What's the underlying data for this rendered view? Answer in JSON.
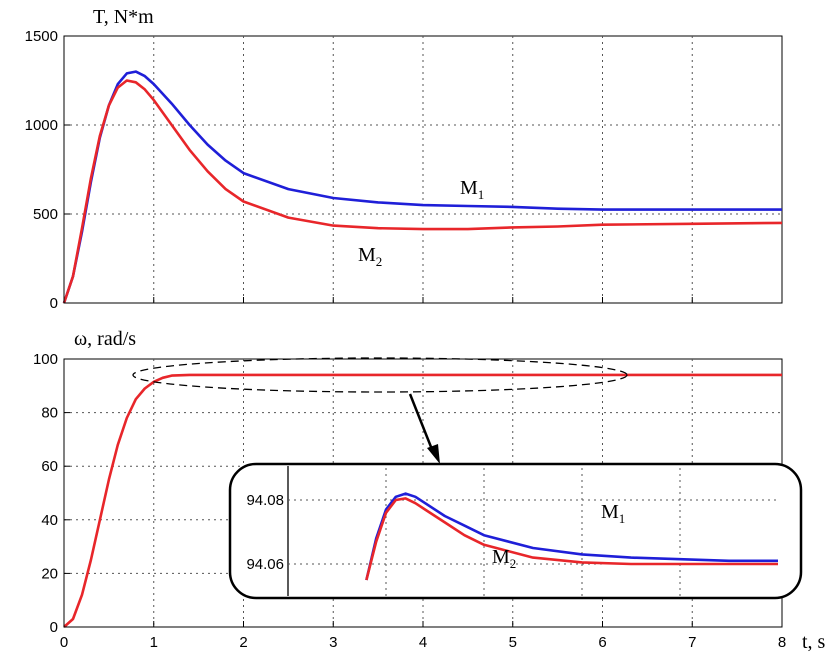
{
  "chart_data": [
    {
      "type": "line",
      "ylabel": "T, N*m",
      "xlabel": "",
      "xlim": [
        0,
        8
      ],
      "ylim": [
        0,
        1500
      ],
      "x_ticks": [
        "0",
        "1",
        "2",
        "3",
        "4",
        "5",
        "6",
        "7",
        "8"
      ],
      "y_ticks": [
        "0",
        "500",
        "1000",
        "1500"
      ],
      "y_tick_values": [
        0,
        500,
        1000,
        1500
      ],
      "grid": true,
      "x": [
        0,
        0.1,
        0.2,
        0.3,
        0.4,
        0.5,
        0.6,
        0.7,
        0.8,
        0.9,
        1.0,
        1.2,
        1.4,
        1.6,
        1.8,
        2.0,
        2.5,
        3.0,
        3.5,
        4.0,
        4.5,
        5.0,
        5.5,
        6.0,
        7.0,
        8.0
      ],
      "series": [
        {
          "name": "M1",
          "label": "M",
          "label_sub": "1",
          "color": "#1f1fd8",
          "values": [
            0,
            150,
            400,
            680,
            930,
            1110,
            1230,
            1290,
            1300,
            1275,
            1230,
            1120,
            1000,
            890,
            800,
            730,
            640,
            590,
            565,
            550,
            545,
            540,
            530,
            525,
            525,
            525
          ]
        },
        {
          "name": "M2",
          "label": "M",
          "label_sub": "2",
          "color": "#e8262a",
          "values": [
            0,
            150,
            420,
            700,
            940,
            1110,
            1210,
            1250,
            1240,
            1200,
            1140,
            1000,
            860,
            740,
            640,
            570,
            480,
            435,
            420,
            415,
            415,
            425,
            430,
            440,
            445,
            450
          ]
        }
      ]
    },
    {
      "type": "line",
      "ylabel": "ω, rad/s",
      "xlabel": "t, s",
      "xlim": [
        0,
        8
      ],
      "ylim": [
        0,
        100
      ],
      "x_ticks": [
        "0",
        "1",
        "2",
        "3",
        "4",
        "5",
        "6",
        "7",
        "8"
      ],
      "y_ticks": [
        "0",
        "20",
        "40",
        "60",
        "80",
        "100"
      ],
      "y_tick_values": [
        0,
        20,
        40,
        60,
        80,
        100
      ],
      "grid": true,
      "x": [
        0,
        0.1,
        0.2,
        0.3,
        0.4,
        0.5,
        0.6,
        0.7,
        0.8,
        0.9,
        1.0,
        1.1,
        1.2,
        1.4,
        1.6,
        2.0,
        3.0,
        4.0,
        5.0,
        6.0,
        7.0,
        8.0
      ],
      "series": [
        {
          "name": "ω",
          "color": "#e8262a",
          "values": [
            0,
            3,
            12,
            25,
            40,
            55,
            68,
            78,
            85,
            89,
            91.5,
            93,
            93.8,
            94.05,
            94.07,
            94.07,
            94.07,
            94.07,
            94.07,
            94.07,
            94.07,
            94.07
          ]
        }
      ],
      "annotation": "dashed ellipse around the steady-state region with an arrow pointing to the zoomed inset"
    },
    {
      "type": "line",
      "inset": true,
      "ylim": [
        94.05,
        94.09
      ],
      "y_ticks": [
        "94.08",
        "94.06"
      ],
      "y_tick_values": [
        94.08,
        94.06
      ],
      "xlim": [
        3.0,
        8.0
      ],
      "grid": true,
      "x": [
        3.8,
        3.9,
        4.0,
        4.1,
        4.2,
        4.3,
        4.4,
        4.6,
        4.8,
        5.0,
        5.5,
        6.0,
        6.5,
        7.0,
        7.5,
        8.0
      ],
      "series": [
        {
          "name": "M1",
          "label": "M",
          "label_sub": "1",
          "color": "#1f1fd8",
          "values": [
            94.055,
            94.068,
            94.077,
            94.081,
            94.082,
            94.081,
            94.079,
            94.075,
            94.072,
            94.069,
            94.065,
            94.063,
            94.062,
            94.0615,
            94.061,
            94.061
          ]
        },
        {
          "name": "M2",
          "label": "M",
          "label_sub": "2",
          "color": "#e8262a",
          "values": [
            94.055,
            94.067,
            94.076,
            94.08,
            94.0805,
            94.079,
            94.077,
            94.073,
            94.069,
            94.066,
            94.062,
            94.0605,
            94.06,
            94.06,
            94.06,
            94.06
          ]
        }
      ]
    }
  ]
}
